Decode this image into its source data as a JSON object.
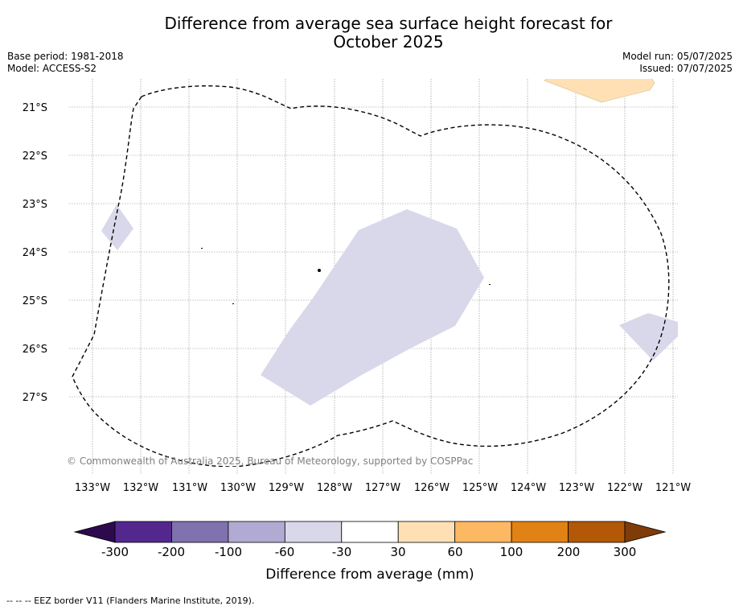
{
  "title": {
    "line1": "Difference from average sea surface height forecast for",
    "line2": "October 2025"
  },
  "meta": {
    "base_period": "Base period: 1981-2018",
    "model": "Model: ACCESS-S2",
    "model_run": "Model run: 05/07/2025",
    "issued": "Issued: 07/07/2025"
  },
  "map": {
    "lon_labels": [
      "133°W",
      "132°W",
      "131°W",
      "130°W",
      "129°W",
      "128°W",
      "127°W",
      "126°W",
      "125°W",
      "124°W",
      "123°W",
      "122°W",
      "121°W"
    ],
    "lat_labels": [
      "21°S",
      "22°S",
      "23°S",
      "24°S",
      "25°S",
      "26°S",
      "27°S"
    ],
    "copyright": "© Commonwealth of Australia 2025, Bureau of Meteorology, supported by COSPPac",
    "land_color": "#000000",
    "grid": true
  },
  "colorbar": {
    "label": "Difference from average (mm)",
    "ticks": [
      "-300",
      "-200",
      "-100",
      "-60",
      "-30",
      "30",
      "60",
      "100",
      "200",
      "300"
    ],
    "colors": [
      "#2d0a4e",
      "#54278f",
      "#7f72ae",
      "#b1aad2",
      "#d9d8ea",
      "#ffffff",
      "#ffe0b5",
      "#fdb863",
      "#e08214",
      "#b35806",
      "#7f3b08"
    ]
  },
  "footnote": "-- -- -- EEZ border V11 (Flanders Marine Institute, 2019)."
}
